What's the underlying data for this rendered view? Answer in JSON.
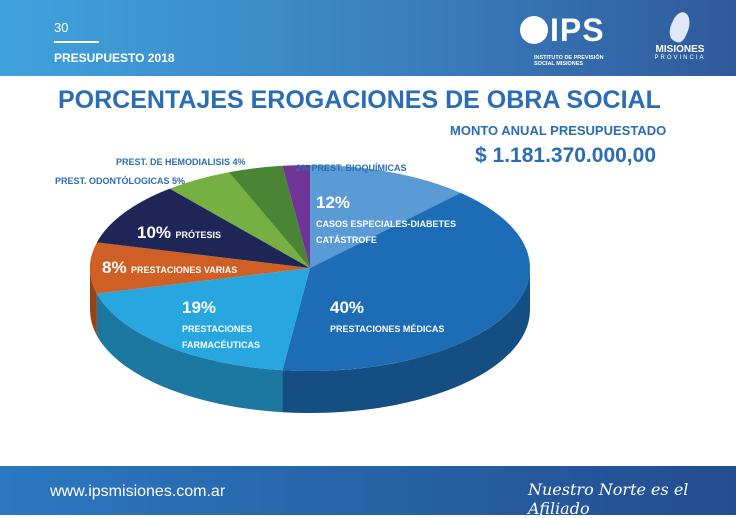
{
  "header": {
    "page_number": "30",
    "subtitle": "PRESUPUESTO 2018",
    "logo_ips": "IPS",
    "logo_ips_sub": "INSTITUTO DE PREVISIÓN SOCIAL MISIONES",
    "logo_misiones": "MISIONES",
    "logo_misiones_sub": "PROVINCIA"
  },
  "title": "PORCENTAJES EROGACIONES DE OBRA SOCIAL",
  "monto": {
    "label": "MONTO ANUAL PRESUPUESTADO",
    "value": "$ 1.181.370.000,00"
  },
  "chart_data": {
    "type": "pie",
    "style": "3d",
    "slices": [
      {
        "pct_label": "12%",
        "label": "CASOS ESPECIALES-DIABETES",
        "label2": "CATÁSTROFE",
        "value": 12,
        "color": "#5b9bd5"
      },
      {
        "pct_label": "40%",
        "label": "PRESTACIONES MÉDICAS",
        "value": 40,
        "color": "#1c6cb6"
      },
      {
        "pct_label": "19%",
        "label": "PRESTACIONES",
        "label2": "FARMACÉUTICAS",
        "value": 19,
        "color": "#27a6e0"
      },
      {
        "pct_label": "8%",
        "label": "PRESTACIONES VARIAS",
        "value": 8,
        "color": "#cf5f24"
      },
      {
        "pct_label": "10%",
        "label": "PRÓTESIS",
        "value": 10,
        "color": "#1d2657"
      },
      {
        "label": "PREST. ODONTÓLOGICAS  5%",
        "value": 5,
        "color": "#76b043"
      },
      {
        "label": "PREST. DE HEMODIALISIS 4%",
        "value": 4,
        "color": "#4a8535"
      },
      {
        "label": "2% PREST. BIOQUÍMICAS",
        "value": 2,
        "color": "#6f3596"
      }
    ]
  },
  "footer": {
    "website": "www.ipsmisiones.com.ar",
    "slogan": "Nuestro Norte es el Afiliado"
  }
}
